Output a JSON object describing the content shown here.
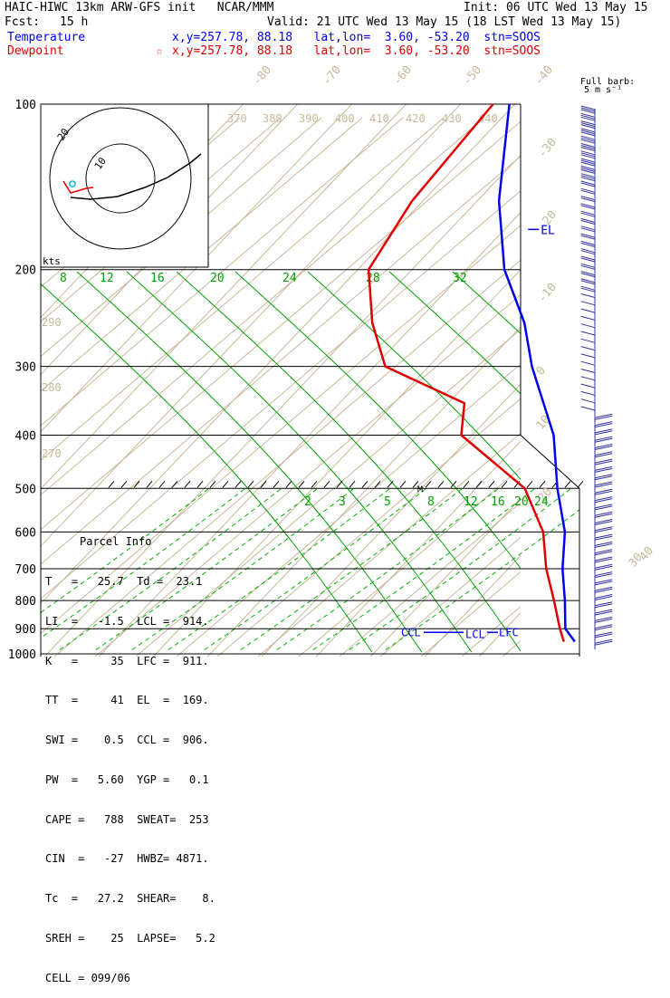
{
  "header": {
    "title": "HAIC-HIWC 13km ARW-GFS init   NCAR/MMM",
    "init": "Init: 06 UTC Wed 13 May 15",
    "fcst_label": "Fcst:",
    "fcst_value": "15 h",
    "valid": "Valid: 21 UTC Wed 13 May 15 (18 LST Wed 13 May 15)",
    "temp_label": "Temperature",
    "temp_info": "x,y=257.78, 88.18   lat,lon=  3.60, -53.20  stn=SOOS",
    "dew_label": "Dewpoint",
    "dew_marker": "☆",
    "dew_info": "x,y=257.78, 88.18   lat,lon=  3.60, -53.20  stn=SOOS"
  },
  "barb_legend": {
    "line1": "Full barb:",
    "line2": "5 m s⁻¹"
  },
  "hodograph": {
    "units": "kts",
    "ring_labels": [
      "20",
      "10"
    ]
  },
  "parcel": {
    "title": "Parcel Info",
    "lines": [
      "T   =   25.7  Td =  23.1",
      "LI  =   -1.5  LCL =  914.",
      "K   =     35  LFC =  911.",
      "TT  =     41  EL  =  169.",
      "SWI =    0.5  CCL =  906.",
      "PW  =   5.60  YGP =   0.1",
      "CAPE =   788  SWEAT=  253",
      "CIN  =   -27  HWBZ= 4871.",
      "Tc  =   27.2  SHEAR=    8.",
      "SREH =    25  LAPSE=   5.2",
      "CELL = 099/06"
    ]
  },
  "colors": {
    "temperature": "#0000ee",
    "dewpoint": "#e00000",
    "isotherm": "#c8b89a",
    "mixing": "#00a000",
    "dry_adiabat": "#c8b89a",
    "moist_adiabat": "#00b000"
  },
  "chart_data": {
    "type": "skew-t",
    "pressure_levels": [
      100,
      200,
      300,
      400,
      500,
      600,
      700,
      800,
      900,
      1000
    ],
    "isotherm_labels": [
      "-80",
      "-70",
      "-60",
      "-50",
      "-40",
      "-30",
      "-20",
      "-10",
      "0",
      "10",
      "20",
      "30",
      "40"
    ],
    "theta_labels": [
      "370",
      "380",
      "390",
      "400",
      "410",
      "420",
      "430",
      "440"
    ],
    "theta_low_labels": [
      "290",
      "280",
      "270"
    ],
    "mixing_ratio_labels_upper": [
      "8",
      "12",
      "16",
      "20",
      "24",
      "28",
      "32"
    ],
    "mixing_ratio_labels_lower": [
      "2",
      "3",
      "5",
      "8",
      "12",
      "16",
      "20",
      "24"
    ],
    "annotations": [
      "EL",
      "CCL",
      "LCL",
      "LFC",
      "M"
    ],
    "temperature_profile": [
      {
        "p": 100,
        "t": -81
      },
      {
        "p": 150,
        "t": -66
      },
      {
        "p": 200,
        "t": -53
      },
      {
        "p": 250,
        "t": -40
      },
      {
        "p": 300,
        "t": -31
      },
      {
        "p": 400,
        "t": -15
      },
      {
        "p": 500,
        "t": -5
      },
      {
        "p": 600,
        "t": 4
      },
      {
        "p": 700,
        "t": 10
      },
      {
        "p": 800,
        "t": 16
      },
      {
        "p": 900,
        "t": 21
      },
      {
        "p": 950,
        "t": 25
      }
    ],
    "dewpoint_profile": [
      {
        "p": 100,
        "t": -84
      },
      {
        "p": 150,
        "t": -82
      },
      {
        "p": 200,
        "t": -78
      },
      {
        "p": 250,
        "t": -68
      },
      {
        "p": 300,
        "t": -58
      },
      {
        "p": 350,
        "t": -37
      },
      {
        "p": 400,
        "t": -32
      },
      {
        "p": 500,
        "t": -11
      },
      {
        "p": 600,
        "t": 0
      },
      {
        "p": 700,
        "t": 7
      },
      {
        "p": 800,
        "t": 14
      },
      {
        "p": 900,
        "t": 20
      },
      {
        "p": 950,
        "t": 23
      }
    ]
  }
}
